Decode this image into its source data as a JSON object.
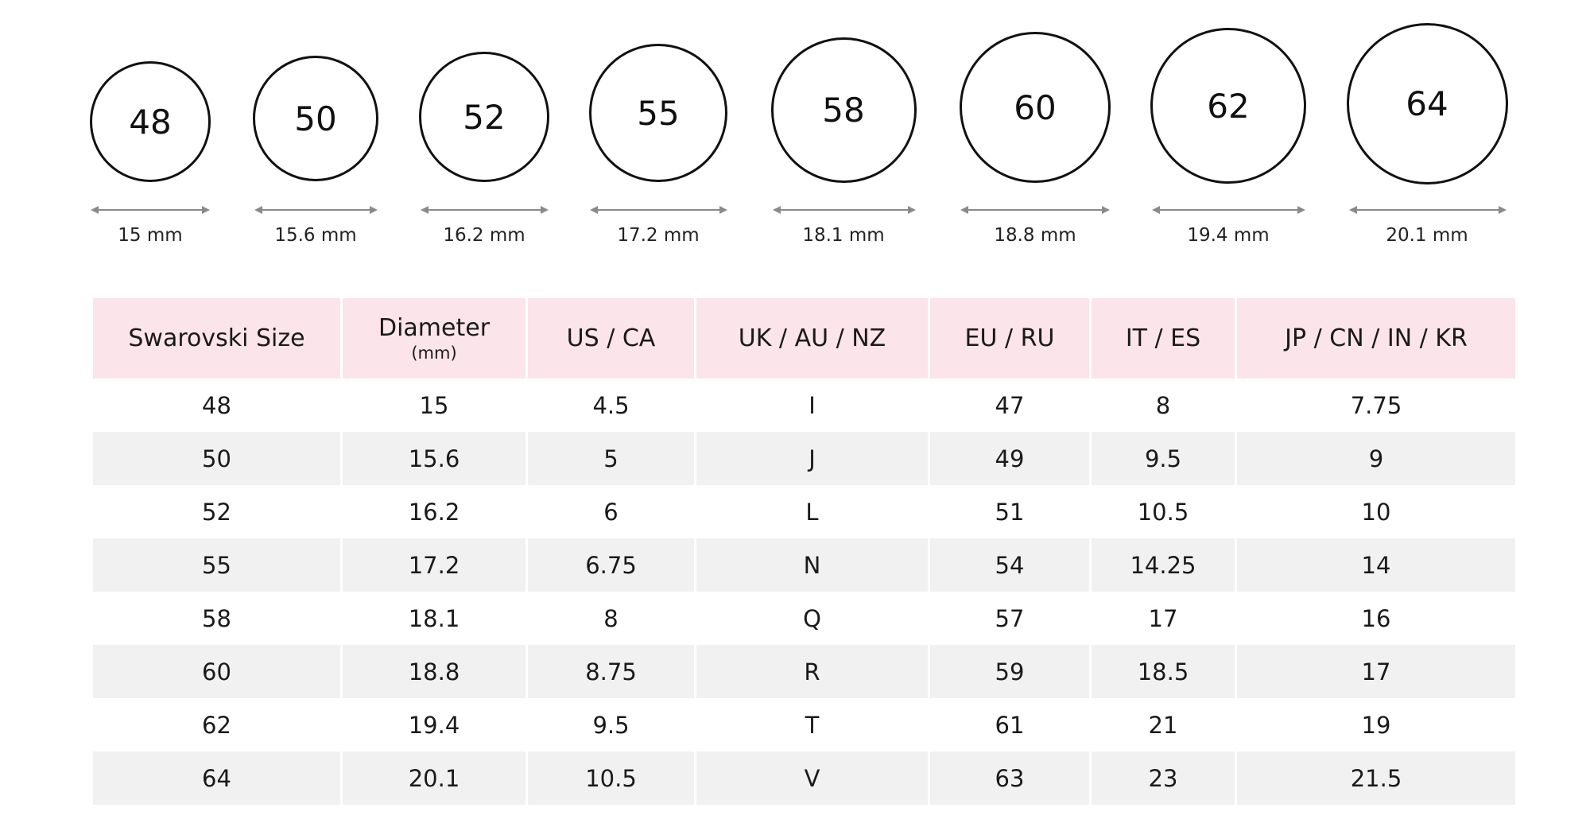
{
  "rings": [
    {
      "size": "48",
      "width_label": "15 mm"
    },
    {
      "size": "50",
      "width_label": "15.6 mm"
    },
    {
      "size": "52",
      "width_label": "16.2 mm"
    },
    {
      "size": "55",
      "width_label": "17.2 mm"
    },
    {
      "size": "58",
      "width_label": "18.1 mm"
    },
    {
      "size": "60",
      "width_label": "18.8 mm"
    },
    {
      "size": "62",
      "width_label": "19.4 mm"
    },
    {
      "size": "64",
      "width_label": "20.1 mm"
    }
  ],
  "table": {
    "headers": [
      {
        "label": "Swarovski Size",
        "sub": ""
      },
      {
        "label": "Diameter",
        "sub": "(mm)"
      },
      {
        "label": "US / CA",
        "sub": ""
      },
      {
        "label": "UK / AU / NZ",
        "sub": ""
      },
      {
        "label": "EU / RU",
        "sub": ""
      },
      {
        "label": "IT / ES",
        "sub": ""
      },
      {
        "label": "JP / CN / IN / KR",
        "sub": ""
      }
    ],
    "rows": [
      [
        "48",
        "15",
        "4.5",
        "I",
        "47",
        "8",
        "7.75"
      ],
      [
        "50",
        "15.6",
        "5",
        "J",
        "49",
        "9.5",
        "9"
      ],
      [
        "52",
        "16.2",
        "6",
        "L",
        "51",
        "10.5",
        "10"
      ],
      [
        "55",
        "17.2",
        "6.75",
        "N",
        "54",
        "14.25",
        "14"
      ],
      [
        "58",
        "18.1",
        "8",
        "Q",
        "57",
        "17",
        "16"
      ],
      [
        "60",
        "18.8",
        "8.75",
        "R",
        "59",
        "18.5",
        "17"
      ],
      [
        "62",
        "19.4",
        "9.5",
        "T",
        "61",
        "21",
        "19"
      ],
      [
        "64",
        "20.1",
        "10.5",
        "V",
        "63",
        "23",
        "21.5"
      ]
    ]
  },
  "colors": {
    "header_bg": "#fbe4ea",
    "row_alt_bg": "#f1f1f1",
    "row_bg": "#ffffff",
    "ring_stroke": "#111111",
    "arrow": "#8a8a8a"
  }
}
